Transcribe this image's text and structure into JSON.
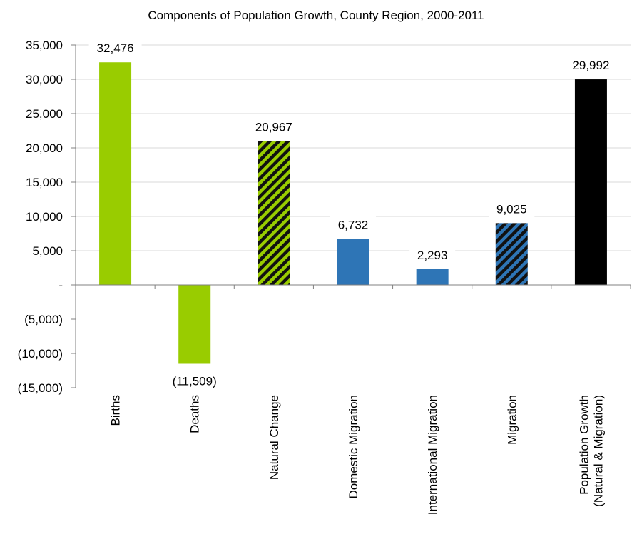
{
  "chart_data": {
    "type": "bar",
    "title": "Components of Population Growth, County Region, 2000-2011",
    "xlabel": "",
    "ylabel": "",
    "ylim": [
      -15000,
      35000
    ],
    "yticks": [
      35000,
      30000,
      25000,
      20000,
      15000,
      10000,
      5000,
      0,
      -5000,
      -10000,
      -15000
    ],
    "ytick_labels": [
      "35,000",
      "30,000",
      "25,000",
      "20,000",
      "15,000",
      "10,000",
      "5,000",
      "-",
      "(5,000)",
      "(10,000)",
      "(15,000)"
    ],
    "grid": true,
    "categories": [
      [
        "Births"
      ],
      [
        "Deaths"
      ],
      [
        "Natural Change"
      ],
      [
        "Domestic Migration"
      ],
      [
        "International Migration"
      ],
      [
        "Migration"
      ],
      [
        "Population Growth",
        "(Natural & Migration)"
      ]
    ],
    "values": [
      32476,
      -11509,
      20967,
      6732,
      2293,
      9025,
      29992
    ],
    "data_labels": [
      "32,476",
      "(11,509)",
      "20,967",
      "6,732",
      "2,293",
      "9,025",
      "29,992"
    ],
    "colors": [
      "#99cc00",
      "#99cc00",
      "#99cc00",
      "#2e75b6",
      "#2e75b6",
      "#2e75b6",
      "#000000"
    ],
    "hatched": [
      false,
      false,
      true,
      false,
      false,
      true,
      false
    ]
  }
}
